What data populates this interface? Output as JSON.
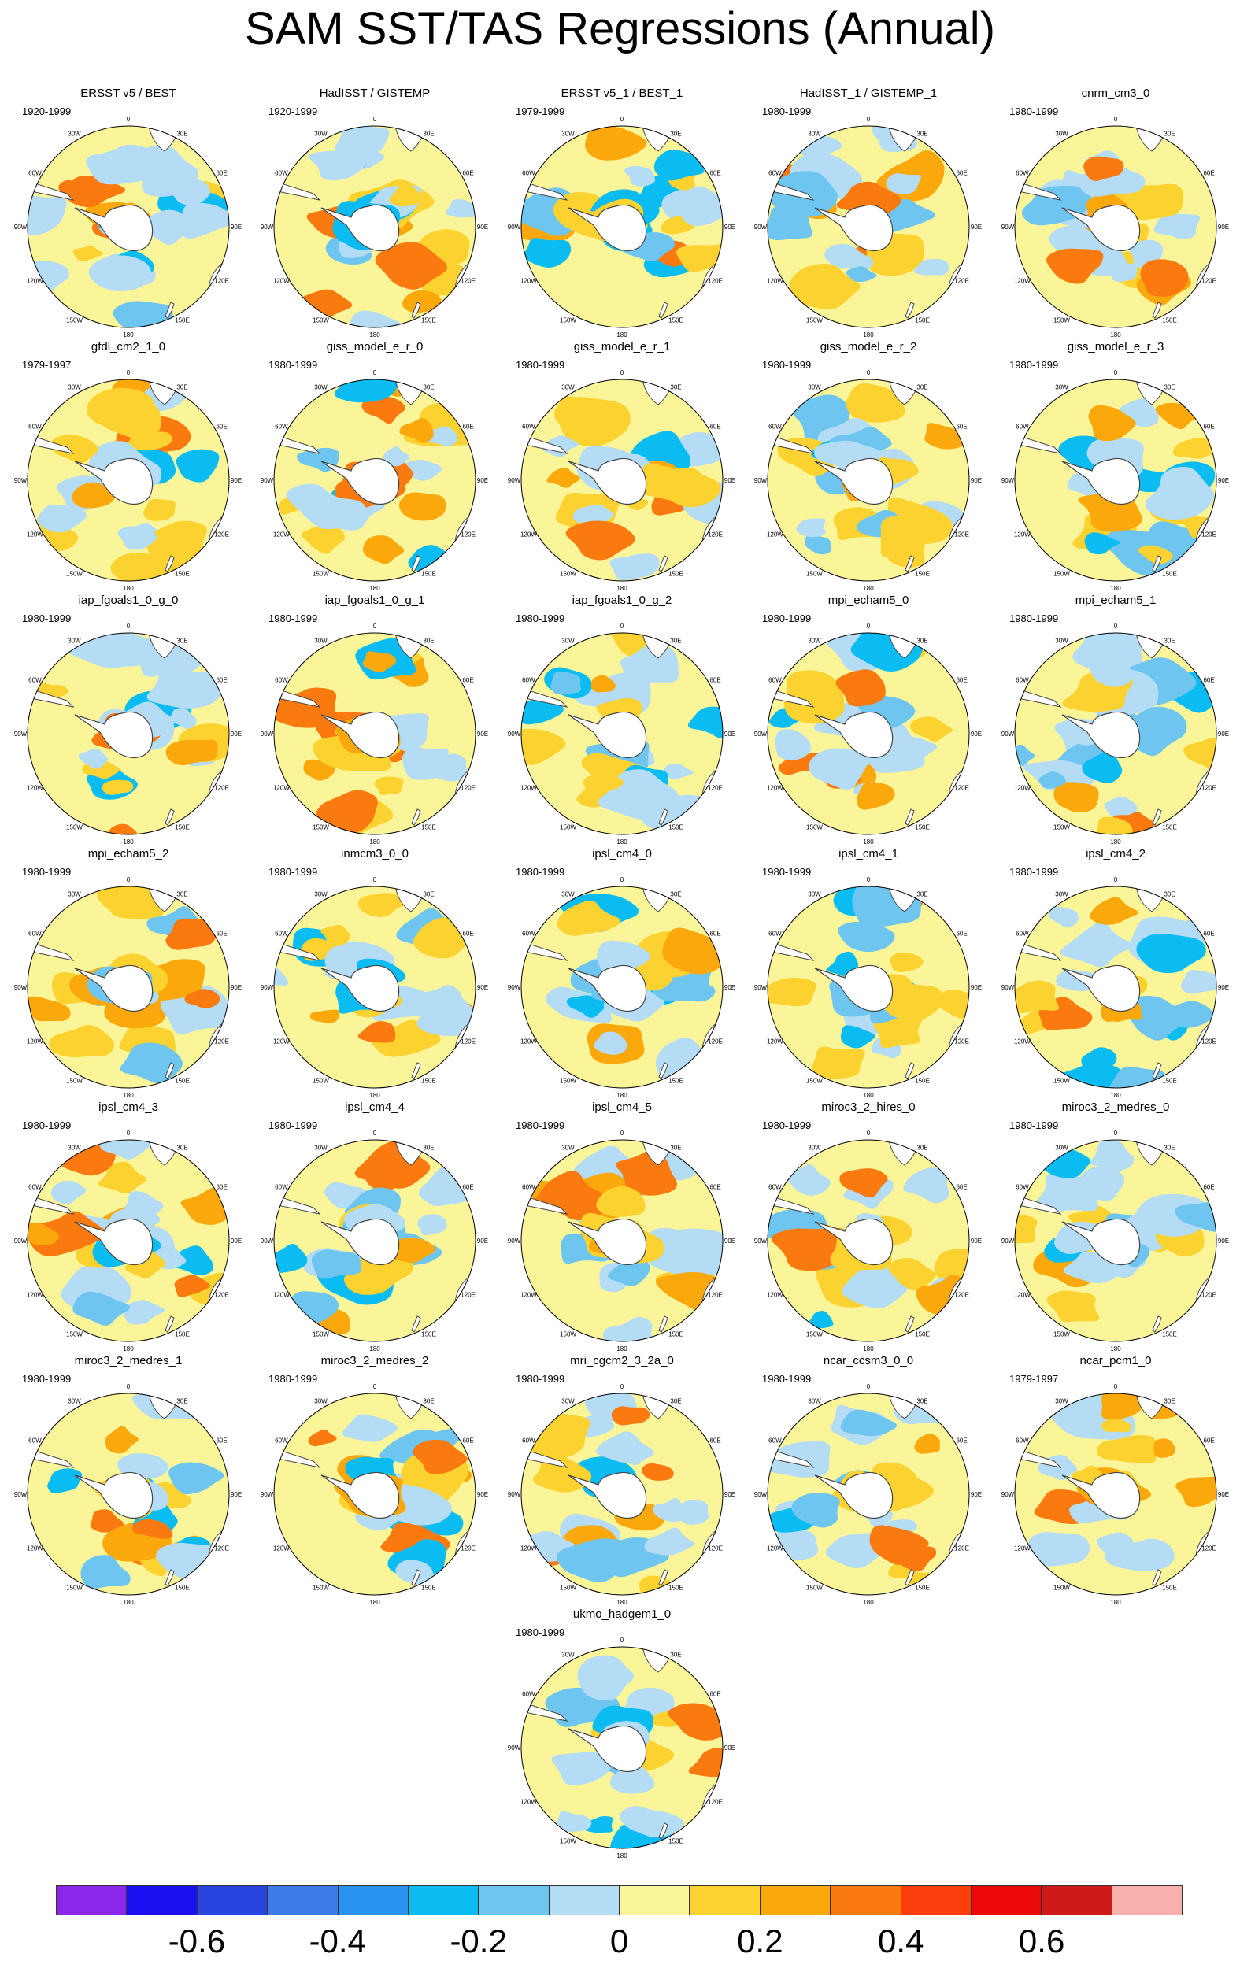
{
  "title": "SAM SST/TAS Regressions (Annual)",
  "lon_labels": {
    "l0": "0",
    "l30e": "30E",
    "l60e": "60E",
    "l90e": "90E",
    "l120e": "120E",
    "l150e": "150E",
    "l180": "180",
    "l150w": "150W",
    "l120w": "120W",
    "l90w": "90W",
    "l60w": "60W",
    "l30w": "30W"
  },
  "panels": [
    {
      "title": "ERSST v5 / BEST",
      "period": "1920-1999"
    },
    {
      "title": "HadISST / GISTEMP",
      "period": "1920-1999"
    },
    {
      "title": "ERSST v5_1 / BEST_1",
      "period": "1979-1999"
    },
    {
      "title": "HadISST_1 / GISTEMP_1",
      "period": "1980-1999"
    },
    {
      "title": "cnrm_cm3_0",
      "period": "1980-1999"
    },
    {
      "title": "gfdl_cm2_1_0",
      "period": "1979-1997"
    },
    {
      "title": "giss_model_e_r_0",
      "period": "1980-1999"
    },
    {
      "title": "giss_model_e_r_1",
      "period": "1980-1999"
    },
    {
      "title": "giss_model_e_r_2",
      "period": "1980-1999"
    },
    {
      "title": "giss_model_e_r_3",
      "period": "1980-1999"
    },
    {
      "title": "iap_fgoals1_0_g_0",
      "period": "1980-1999"
    },
    {
      "title": "iap_fgoals1_0_g_1",
      "period": "1980-1999"
    },
    {
      "title": "iap_fgoals1_0_g_2",
      "period": "1980-1999"
    },
    {
      "title": "mpi_echam5_0",
      "period": "1980-1999"
    },
    {
      "title": "mpi_echam5_1",
      "period": "1980-1999"
    },
    {
      "title": "mpi_echam5_2",
      "period": "1980-1999"
    },
    {
      "title": "inmcm3_0_0",
      "period": "1980-1999"
    },
    {
      "title": "ipsl_cm4_0",
      "period": "1980-1999"
    },
    {
      "title": "ipsl_cm4_1",
      "period": "1980-1999"
    },
    {
      "title": "ipsl_cm4_2",
      "period": "1980-1999"
    },
    {
      "title": "ipsl_cm4_3",
      "period": "1980-1999"
    },
    {
      "title": "ipsl_cm4_4",
      "period": "1980-1999"
    },
    {
      "title": "ipsl_cm4_5",
      "period": "1980-1999"
    },
    {
      "title": "miroc3_2_hires_0",
      "period": "1980-1999"
    },
    {
      "title": "miroc3_2_medres_0",
      "period": "1980-1999"
    },
    {
      "title": "miroc3_2_medres_1",
      "period": "1980-1999"
    },
    {
      "title": "miroc3_2_medres_2",
      "period": "1980-1999"
    },
    {
      "title": "mri_cgcm2_3_2a_0",
      "period": "1980-1999"
    },
    {
      "title": "ncar_ccsm3_0_0",
      "period": "1980-1999"
    },
    {
      "title": "ncar_pcm1_0",
      "period": "1979-1997"
    },
    {
      "title": "ukmo_hadgem1_0",
      "period": "1980-1999"
    }
  ],
  "colorbar": {
    "colors": [
      "#8b27e8",
      "#1a10f0",
      "#2a44e0",
      "#3b7ce6",
      "#2a93f0",
      "#0bbcf3",
      "#6ec6f0",
      "#b4dcf4",
      "#fbf59a",
      "#fbd22f",
      "#fba80c",
      "#fb7a10",
      "#fb3e0c",
      "#ec0808",
      "#cf1a1a",
      "#fbb0b0"
    ],
    "labels": [
      "-0.6",
      "-0.4",
      "-0.2",
      "0",
      "0.2",
      "0.4",
      "0.6"
    ]
  }
}
